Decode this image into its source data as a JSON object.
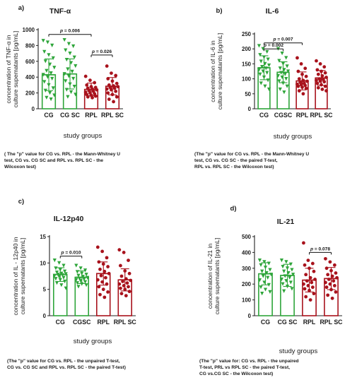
{
  "colors": {
    "control": "#2ea53a",
    "rpl": "#a8121c",
    "axis": "#222222",
    "bracket": "#111111"
  },
  "chart_data": [
    {
      "type": "bar",
      "panel_label": "a)",
      "title": "TNF-α",
      "ylabel": "concentration of TNF-α in culture supematants [pg/mL]",
      "xlabel": "study groups",
      "ylim": [
        0,
        1000
      ],
      "yticks": [
        0,
        200,
        400,
        600,
        800,
        1000
      ],
      "categories": [
        "CG",
        "CG SC",
        "RPL",
        "RPL SC"
      ],
      "values": [
        430,
        440,
        245,
        285
      ],
      "sd": [
        200,
        190,
        80,
        110
      ],
      "points": [
        [
          860,
          840,
          800,
          720,
          680,
          640,
          600,
          560,
          520,
          480,
          450,
          430,
          400,
          380,
          340,
          300,
          260,
          230,
          200,
          170,
          140,
          120
        ],
        [
          870,
          820,
          790,
          740,
          700,
          650,
          620,
          580,
          540,
          500,
          470,
          440,
          410,
          380,
          350,
          310,
          280,
          240,
          210,
          180,
          150
        ],
        [
          410,
          360,
          330,
          300,
          280,
          270,
          260,
          250,
          240,
          230,
          220,
          210,
          200,
          190,
          180,
          170,
          160,
          150,
          140
        ],
        [
          540,
          450,
          420,
          380,
          350,
          320,
          300,
          290,
          280,
          270,
          260,
          250,
          240,
          220,
          200,
          180,
          150,
          120,
          90
        ]
      ],
      "annotations": [
        {
          "from": 0,
          "to": 2,
          "text": "p = 0.006",
          "level": 940
        },
        {
          "from": 2,
          "to": 3,
          "text": "p = 0.026",
          "level": 680
        }
      ],
      "note": "( The \"p\" value for CG vs. RPL - the Mann-Whitney U\ntest,  CG vs. CG SC and RPL vs. RPL SC - the\nWilcoxon test)"
    },
    {
      "type": "bar",
      "panel_label": "b)",
      "title": "IL-6",
      "ylabel": "concentration of IL-6 in culture supematants [pg/mL]",
      "xlabel": "study groups",
      "ylim": [
        0,
        250
      ],
      "yticks": [
        0,
        50,
        100,
        150,
        200,
        250
      ],
      "categories": [
        "CG",
        "CGSC",
        "RPL",
        "RPL SC"
      ],
      "values": [
        137,
        122,
        93,
        103
      ],
      "sd": [
        40,
        35,
        30,
        25
      ],
      "points": [
        [
          210,
          200,
          190,
          180,
          172,
          165,
          158,
          150,
          145,
          140,
          135,
          130,
          125,
          120,
          115,
          105,
          95,
          85,
          75,
          65
        ],
        [
          200,
          185,
          170,
          160,
          150,
          142,
          135,
          130,
          125,
          120,
          115,
          110,
          105,
          100,
          92,
          85,
          75,
          65,
          55
        ],
        [
          170,
          150,
          135,
          125,
          115,
          108,
          100,
          95,
          92,
          88,
          85,
          82,
          80,
          78,
          75,
          72,
          68,
          60,
          50
        ],
        [
          160,
          150,
          140,
          130,
          125,
          120,
          115,
          110,
          105,
          100,
          98,
          95,
          92,
          90,
          85,
          80,
          75,
          70,
          65,
          60
        ]
      ],
      "annotations": [
        {
          "from": 0,
          "to": 2,
          "text": "p = 0.007",
          "level": 220
        },
        {
          "from": 0,
          "to": 1,
          "text": "p = 0.002",
          "level": 200
        }
      ],
      "note": "(The \"p\" value for CG vs. RPL - the Mann-Whitney U\ntest, CG vs. CG SC - the paired T-test,\nRPL vs. RPL SC - the Wilcoxon test)"
    },
    {
      "type": "bar",
      "panel_label": "c)",
      "title": "IL-12p40",
      "ylabel": "concentration of IL - 12p40 in culture supematants [pg/mL]",
      "xlabel": "study groups",
      "ylim": [
        0,
        15
      ],
      "yticks": [
        0,
        5,
        10,
        15
      ],
      "categories": [
        "CG",
        "CGSC",
        "RPL",
        "RPL SC"
      ],
      "values": [
        7.8,
        7.3,
        8.0,
        6.8
      ],
      "sd": [
        1.3,
        1.2,
        2.2,
        2.1
      ],
      "points": [
        [
          10.5,
          10.0,
          9.5,
          9.0,
          8.7,
          8.4,
          8.2,
          8.0,
          7.9,
          7.8,
          7.7,
          7.6,
          7.4,
          7.2,
          7.0,
          6.8,
          6.5,
          6.2,
          5.8,
          5.2
        ],
        [
          9.5,
          9.0,
          8.6,
          8.3,
          8.0,
          7.8,
          7.6,
          7.4,
          7.2,
          7.0,
          6.9,
          6.8,
          6.6,
          6.4,
          6.2,
          6.0,
          5.8,
          5.5
        ],
        [
          13.0,
          12.2,
          11.0,
          10.2,
          9.8,
          9.3,
          8.8,
          8.4,
          8.0,
          7.6,
          7.2,
          6.8,
          6.4,
          6.0,
          5.5,
          5.0,
          4.5,
          4.0,
          3.5
        ],
        [
          12.5,
          12.0,
          10.5,
          9.5,
          8.5,
          8.0,
          7.5,
          7.0,
          6.7,
          6.5,
          6.2,
          6.0,
          5.7,
          5.5,
          5.2,
          5.0,
          4.6,
          4.2,
          3.8
        ]
      ],
      "annotations": [
        {
          "from": 0,
          "to": 1,
          "text": "p = 0.010",
          "level": 11.3
        }
      ],
      "note": "(The \"p\" value for CG vs. RPL - the unpaired T-test,\nCG vs. CG SC and RPL vs. RPL SC - the paired T-test)"
    },
    {
      "type": "bar",
      "panel_label": "d)",
      "title": "IL-21",
      "ylabel": "concentration of IL-21 in culture supematants [pg/mL]",
      "xlabel": "study groups",
      "ylim": [
        0,
        500
      ],
      "yticks": [
        0,
        100,
        200,
        300,
        400,
        500
      ],
      "categories": [
        "CG",
        "CG SC",
        "RPL",
        "RPL SC"
      ],
      "values": [
        265,
        255,
        225,
        235
      ],
      "sd": [
        70,
        70,
        75,
        70
      ],
      "points": [
        [
          350,
          340,
          330,
          320,
          305,
          290,
          280,
          270,
          260,
          250,
          240,
          225,
          210,
          195,
          180,
          165,
          150,
          140
        ],
        [
          350,
          340,
          325,
          310,
          300,
          290,
          280,
          270,
          260,
          250,
          240,
          230,
          220,
          210,
          200,
          185,
          170,
          155
        ],
        [
          460,
          350,
          330,
          320,
          300,
          280,
          260,
          240,
          230,
          220,
          210,
          200,
          190,
          180,
          170,
          160,
          140,
          120,
          100
        ],
        [
          360,
          340,
          320,
          300,
          285,
          270,
          260,
          250,
          240,
          230,
          220,
          210,
          200,
          190,
          180,
          165,
          150,
          130,
          110
        ]
      ],
      "annotations": [
        {
          "from": 2,
          "to": 3,
          "text": "p = 0.078",
          "level": 400
        }
      ],
      "note": "(The \"p\" value for: CG vs. RPL - the unpaired\nT-test, PRL vs RPL SC  - the paired T-test,\nCG vs.CG SC - the Wilcoxon test)"
    }
  ]
}
